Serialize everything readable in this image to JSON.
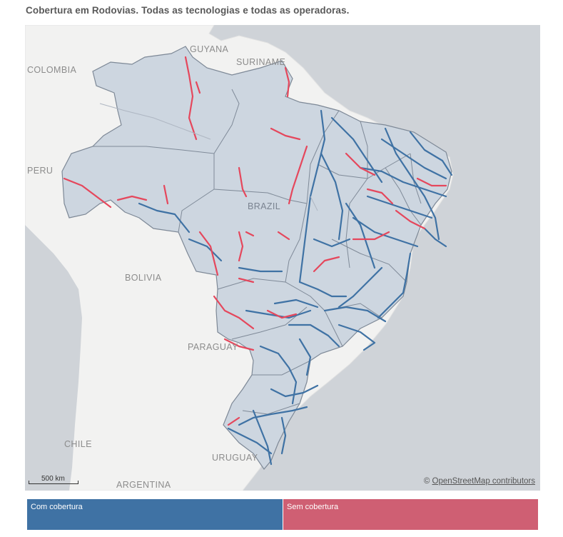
{
  "title": "Cobertura em Rodovias. Todas as tecnologias e todas as operadoras.",
  "colors": {
    "ocean": "#cfd3d8",
    "land": "#f2f2f1",
    "brazil": "#cdd6e0",
    "with_coverage": "#3f72a4",
    "without_coverage": "#e5475c"
  },
  "map": {
    "labels": {
      "colombia": "COLOMBIA",
      "guyana": "GUYANA",
      "suriname": "SURINAME",
      "peru": "PERU",
      "brazil": "BRAZIL",
      "bolivia": "BOLIVIA",
      "paraguay": "PARAGUAY",
      "chile": "CHILE",
      "uruguay": "URUGUAY",
      "argentina": "ARGENTINA"
    },
    "scale_label": "500 km",
    "attribution_symbol": "©",
    "attribution": "OpenStreetMap contributors"
  },
  "legend": {
    "with_coverage": "Com cobertura",
    "without_coverage": "Sem cobertura"
  }
}
